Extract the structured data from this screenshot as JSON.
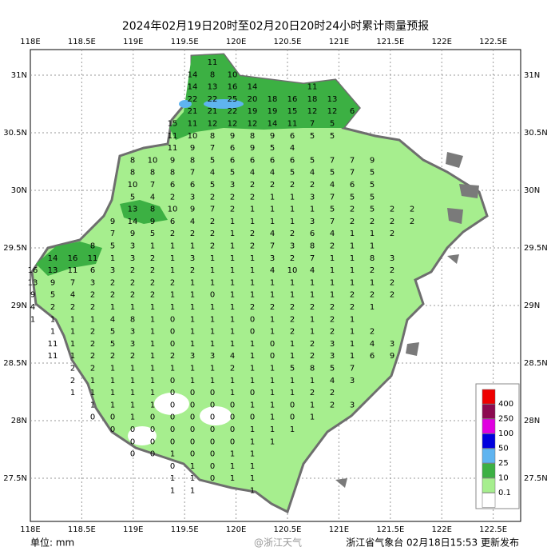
{
  "map": {
    "title": "2024年02月19日20时至02月20日20时24小时累计雨量预报",
    "lon_labels": [
      "118E",
      "118.5E",
      "119E",
      "119.5E",
      "120E",
      "120.5E",
      "121E",
      "121.5E",
      "122E",
      "122.5E"
    ],
    "lat_labels": [
      "31N",
      "30.5N",
      "30N",
      "29.5N",
      "29N",
      "28.5N",
      "28N",
      "27.5N"
    ],
    "legend": [
      {
        "label": "400",
        "color": "#ee0000"
      },
      {
        "label": "250",
        "color": "#8b0a50"
      },
      {
        "label": "100",
        "color": "#e000e0"
      },
      {
        "label": "50",
        "color": "#0000dd"
      },
      {
        "label": "25",
        "color": "#5fb4f0"
      },
      {
        "label": "10",
        "color": "#3cb043"
      },
      {
        "label": "0.1",
        "color": "#a6ee8e"
      },
      {
        "label": null,
        "color": "#ffffff"
      }
    ],
    "unit": "单位: mm",
    "watermark": "@浙江天气",
    "publisher": "浙江省气象台 02月18日15:53 更新发布",
    "rows": [
      [
        null,
        null,
        null,
        null,
        null,
        null,
        null,
        null,
        null,
        null,
        11
      ],
      [
        null,
        null,
        null,
        null,
        null,
        null,
        null,
        null,
        null,
        14,
        8,
        10
      ],
      [
        null,
        null,
        null,
        null,
        null,
        null,
        null,
        null,
        null,
        14,
        13,
        16,
        14,
        null,
        null,
        11
      ],
      [
        null,
        null,
        null,
        null,
        null,
        null,
        null,
        null,
        null,
        22,
        22,
        25,
        20,
        18,
        16,
        18,
        13
      ],
      [
        null,
        null,
        null,
        null,
        null,
        null,
        null,
        null,
        null,
        21,
        21,
        22,
        19,
        19,
        15,
        12,
        12,
        6
      ],
      [
        null,
        null,
        null,
        null,
        null,
        null,
        null,
        null,
        15,
        11,
        12,
        12,
        12,
        14,
        11,
        7,
        5
      ],
      [
        null,
        null,
        null,
        null,
        null,
        null,
        null,
        null,
        11,
        10,
        8,
        9,
        8,
        9,
        6,
        5,
        5
      ],
      [
        null,
        null,
        null,
        null,
        null,
        null,
        null,
        null,
        11,
        9,
        7,
        6,
        9,
        5,
        4
      ],
      [
        null,
        null,
        null,
        null,
        null,
        null,
        8,
        10,
        9,
        8,
        5,
        6,
        6,
        6,
        6,
        5,
        7,
        7,
        9
      ],
      [
        null,
        null,
        null,
        null,
        null,
        null,
        8,
        8,
        8,
        7,
        4,
        5,
        4,
        4,
        5,
        4,
        5,
        7,
        5
      ],
      [
        null,
        null,
        null,
        null,
        null,
        null,
        10,
        7,
        6,
        6,
        5,
        3,
        2,
        2,
        2,
        2,
        4,
        6,
        5
      ],
      [
        null,
        null,
        null,
        null,
        null,
        null,
        5,
        4,
        2,
        3,
        2,
        2,
        2,
        1,
        1,
        3,
        7,
        5,
        5
      ],
      [
        null,
        null,
        null,
        null,
        null,
        null,
        13,
        8,
        10,
        9,
        7,
        2,
        1,
        1,
        1,
        1,
        5,
        2,
        5,
        2,
        2
      ],
      [
        null,
        null,
        null,
        null,
        null,
        9,
        14,
        9,
        6,
        4,
        2,
        1,
        1,
        1,
        1,
        3,
        7,
        2,
        2,
        2,
        2
      ],
      [
        null,
        null,
        null,
        null,
        null,
        7,
        9,
        5,
        2,
        2,
        2,
        1,
        2,
        4,
        2,
        6,
        4,
        1,
        1,
        2
      ],
      [
        null,
        null,
        null,
        null,
        8,
        5,
        3,
        1,
        1,
        1,
        2,
        1,
        2,
        7,
        3,
        8,
        2,
        1,
        1
      ],
      [
        null,
        null,
        14,
        16,
        11,
        1,
        3,
        2,
        1,
        3,
        1,
        1,
        1,
        3,
        2,
        7,
        1,
        1,
        8,
        3
      ],
      [
        null,
        16,
        13,
        11,
        6,
        3,
        2,
        2,
        1,
        2,
        1,
        1,
        1,
        4,
        10,
        4,
        1,
        1,
        2,
        2
      ],
      [
        null,
        13,
        9,
        7,
        3,
        2,
        2,
        2,
        2,
        1,
        1,
        1,
        1,
        1,
        1,
        1,
        1,
        1,
        1,
        2
      ],
      [
        null,
        9,
        5,
        4,
        2,
        2,
        2,
        2,
        1,
        1,
        0,
        1,
        1,
        1,
        1,
        1,
        1,
        2,
        2,
        2
      ],
      [
        null,
        4,
        2,
        2,
        2,
        1,
        1,
        1,
        1,
        1,
        1,
        1,
        2,
        2,
        2,
        2,
        2,
        2,
        1
      ],
      [
        null,
        1,
        1,
        1,
        1,
        4,
        8,
        1,
        0,
        1,
        1,
        1,
        0,
        1,
        2,
        1,
        2,
        1
      ],
      [
        null,
        null,
        1,
        1,
        2,
        5,
        3,
        1,
        0,
        1,
        1,
        1,
        0,
        1,
        2,
        1,
        2,
        1,
        2
      ],
      [
        null,
        null,
        11,
        1,
        2,
        5,
        3,
        1,
        0,
        1,
        1,
        1,
        1,
        0,
        1,
        2,
        3,
        1,
        4,
        3
      ],
      [
        null,
        null,
        11,
        1,
        2,
        2,
        2,
        1,
        2,
        3,
        3,
        4,
        1,
        0,
        1,
        2,
        3,
        1,
        6,
        9
      ],
      [
        null,
        null,
        null,
        2,
        2,
        1,
        1,
        1,
        1,
        1,
        1,
        2,
        1,
        1,
        5,
        8,
        5,
        7
      ],
      [
        null,
        null,
        null,
        2,
        1,
        1,
        1,
        1,
        0,
        1,
        1,
        1,
        1,
        1,
        1,
        1,
        4,
        3
      ],
      [
        null,
        null,
        null,
        1,
        1,
        1,
        1,
        1,
        0,
        0,
        0,
        1,
        0,
        1,
        1,
        2,
        2
      ],
      [
        null,
        null,
        null,
        null,
        1,
        1,
        1,
        1,
        0,
        0,
        0,
        0,
        1,
        1,
        0,
        1,
        2,
        3
      ],
      [
        null,
        null,
        null,
        null,
        0,
        0,
        1,
        0,
        0,
        0,
        0,
        0,
        0,
        1,
        0,
        1
      ],
      [
        null,
        null,
        null,
        null,
        null,
        0,
        0,
        0,
        0,
        0,
        0,
        0,
        1,
        1,
        1
      ],
      [
        null,
        null,
        null,
        null,
        null,
        null,
        0,
        0,
        0,
        0,
        0,
        0,
        1,
        1
      ],
      [
        null,
        null,
        null,
        null,
        null,
        null,
        0,
        0,
        1,
        0,
        0,
        1,
        1
      ],
      [
        null,
        null,
        null,
        null,
        null,
        null,
        null,
        null,
        0,
        1,
        0,
        1,
        1
      ],
      [
        null,
        null,
        null,
        null,
        null,
        null,
        null,
        null,
        1,
        1,
        0,
        1,
        1
      ],
      [
        null,
        null,
        null,
        null,
        null,
        null,
        null,
        null,
        1,
        1,
        null,
        null,
        1
      ]
    ]
  }
}
